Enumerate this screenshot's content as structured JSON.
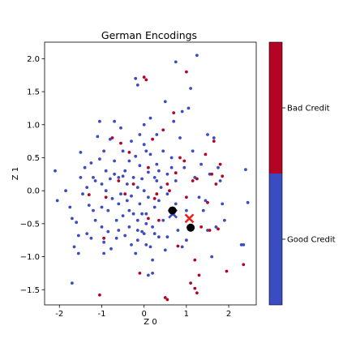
{
  "chart_data": {
    "type": "scatter",
    "title": "German Encodings",
    "xlabel": "Z 0",
    "ylabel": "Z 1",
    "xlim": [
      -2.35,
      2.65
    ],
    "ylim": [
      -1.73,
      2.25
    ],
    "xticks": [
      "-2",
      "-1",
      "0",
      "1",
      "2"
    ],
    "xtick_values": [
      -2,
      -1,
      0,
      1,
      2
    ],
    "yticks": [
      "−1.5",
      "−1.0",
      "−0.5",
      "0.0",
      "0.5",
      "1.0",
      "1.5",
      "2.0"
    ],
    "ytick_values": [
      -1.5,
      -1.0,
      -0.5,
      0.0,
      0.5,
      1.0,
      1.5,
      2.0
    ],
    "grid": false,
    "colors": {
      "good": "#3b4cc0",
      "bad": "#b40426"
    },
    "colorbar": {
      "labels": [
        "Bad Credit",
        "Good Credit"
      ]
    },
    "series": [
      {
        "class": "good",
        "points": [
          [
            -2.1,
            0.3
          ],
          [
            -2.05,
            -0.15
          ],
          [
            -1.85,
            0.0
          ],
          [
            -1.75,
            -0.25
          ],
          [
            -1.7,
            -0.42
          ],
          [
            -1.6,
            -0.48
          ],
          [
            -1.55,
            -0.68
          ],
          [
            -1.65,
            -0.85
          ],
          [
            -1.55,
            -0.95
          ],
          [
            -1.7,
            -1.4
          ],
          [
            -1.5,
            0.58
          ],
          [
            -1.5,
            0.2
          ],
          [
            -1.45,
            -0.05
          ],
          [
            -1.4,
            0.35
          ],
          [
            -1.35,
            0.05
          ],
          [
            -1.3,
            -0.22
          ],
          [
            -1.25,
            0.42
          ],
          [
            -1.2,
            -0.3
          ],
          [
            -1.15,
            0.15
          ],
          [
            -1.15,
            -0.45
          ],
          [
            -1.1,
            0.82
          ],
          [
            -1.05,
            1.05
          ],
          [
            -1.05,
            0.48
          ],
          [
            -1.0,
            0.1
          ],
          [
            -1.0,
            -0.25
          ],
          [
            -1.0,
            -0.55
          ],
          [
            -0.95,
            -0.78
          ],
          [
            -0.95,
            -0.95
          ],
          [
            -0.9,
            0.3
          ],
          [
            -0.9,
            0.0
          ],
          [
            -0.85,
            -0.62
          ],
          [
            -0.85,
            -0.3
          ],
          [
            -0.8,
            0.78
          ],
          [
            -0.8,
            0.18
          ],
          [
            -0.75,
            -0.12
          ],
          [
            -0.7,
            1.05
          ],
          [
            -0.7,
            0.45
          ],
          [
            -0.65,
            -0.45
          ],
          [
            -0.65,
            -0.72
          ],
          [
            -0.6,
            0.2
          ],
          [
            -0.6,
            -0.2
          ],
          [
            -0.55,
            0.95
          ],
          [
            -0.55,
            -0.05
          ],
          [
            -0.5,
            0.6
          ],
          [
            -0.5,
            -0.38
          ],
          [
            -0.45,
            0.3
          ],
          [
            -0.45,
            -0.68
          ],
          [
            -0.4,
            0.1
          ],
          [
            -0.4,
            -0.15
          ],
          [
            -0.35,
            0.45
          ],
          [
            -0.35,
            -0.55
          ],
          [
            -0.3,
            0.75
          ],
          [
            -0.3,
            -0.08
          ],
          [
            -0.25,
            0.2
          ],
          [
            -0.25,
            -0.35
          ],
          [
            -0.2,
            1.7
          ],
          [
            -0.2,
            0.52
          ],
          [
            -0.2,
            -0.95
          ],
          [
            -0.15,
            1.6
          ],
          [
            -0.15,
            0.05
          ],
          [
            -0.15,
            -0.45
          ],
          [
            -0.15,
            -0.75
          ],
          [
            -0.1,
            0.38
          ],
          [
            -0.1,
            -0.2
          ],
          [
            -0.05,
            0.18
          ],
          [
            -0.05,
            -0.62
          ],
          [
            0.0,
            1.0
          ],
          [
            0.0,
            0.7
          ],
          [
            0.0,
            0.0
          ],
          [
            0.05,
            -0.35
          ],
          [
            0.05,
            -0.82
          ],
          [
            0.1,
            0.28
          ],
          [
            0.1,
            -0.1
          ],
          [
            0.15,
            1.1
          ],
          [
            0.15,
            0.55
          ],
          [
            0.2,
            -0.55
          ],
          [
            0.2,
            -1.05
          ],
          [
            0.25,
            0.2
          ],
          [
            0.25,
            -0.25
          ],
          [
            0.3,
            0.85
          ],
          [
            0.3,
            0.4
          ],
          [
            0.35,
            -0.7
          ],
          [
            0.35,
            -0.15
          ],
          [
            0.4,
            0.05
          ],
          [
            0.45,
            0.6
          ],
          [
            0.45,
            -0.45
          ],
          [
            0.5,
            1.35
          ],
          [
            0.5,
            -0.9
          ],
          [
            0.55,
            0.25
          ],
          [
            0.55,
            -0.05
          ],
          [
            0.6,
            -0.3
          ],
          [
            0.65,
            0.5
          ],
          [
            0.7,
            1.05
          ],
          [
            0.75,
            1.95
          ],
          [
            0.75,
            0.15
          ],
          [
            0.8,
            -0.6
          ],
          [
            0.85,
            0.8
          ],
          [
            0.9,
            1.2
          ],
          [
            0.95,
            0.35
          ],
          [
            1.0,
            -0.3
          ],
          [
            1.05,
            1.25
          ],
          [
            1.1,
            1.55
          ],
          [
            1.15,
            0.6
          ],
          [
            1.2,
            0.2
          ],
          [
            1.25,
            2.05
          ],
          [
            1.3,
            -0.1
          ],
          [
            1.35,
            0.4
          ],
          [
            1.4,
            -0.3
          ],
          [
            1.45,
            -0.15
          ],
          [
            1.5,
            0.85
          ],
          [
            1.5,
            -0.6
          ],
          [
            1.55,
            0.25
          ],
          [
            1.6,
            -1.0
          ],
          [
            1.65,
            0.8
          ],
          [
            1.7,
            -0.55
          ],
          [
            1.75,
            0.35
          ],
          [
            1.8,
            0.15
          ],
          [
            1.85,
            -0.2
          ],
          [
            1.9,
            -0.45
          ],
          [
            2.3,
            -0.82
          ],
          [
            2.35,
            -0.82
          ],
          [
            2.4,
            0.32
          ],
          [
            2.45,
            -0.18
          ],
          [
            -1.35,
            -0.65
          ],
          [
            -0.78,
            -0.88
          ],
          [
            -0.3,
            -0.82
          ],
          [
            0.05,
            -0.5
          ],
          [
            0.25,
            -0.65
          ],
          [
            -0.6,
            -0.6
          ],
          [
            -1.25,
            -0.72
          ],
          [
            -0.5,
            0.22
          ],
          [
            -0.95,
            0.6
          ],
          [
            -1.2,
            0.2
          ],
          [
            -0.7,
            0.25
          ],
          [
            0.1,
            -1.28
          ],
          [
            0.2,
            -1.25
          ],
          [
            0.55,
            -0.7
          ],
          [
            0.9,
            -0.85
          ],
          [
            1.0,
            -0.75
          ],
          [
            0.3,
            0.15
          ],
          [
            -0.35,
            -0.3
          ],
          [
            -0.15,
            -0.6
          ],
          [
            0.0,
            -0.65
          ],
          [
            0.15,
            -0.85
          ],
          [
            0.35,
            0.3
          ],
          [
            0.05,
            0.6
          ],
          [
            -0.1,
            0.85
          ],
          [
            -0.05,
            -0.35
          ],
          [
            0.75,
            -0.2
          ],
          [
            0.65,
            0.35
          ]
        ]
      },
      {
        "class": "bad",
        "points": [
          [
            -1.3,
            -0.06
          ],
          [
            -1.05,
            -1.58
          ],
          [
            -0.95,
            -0.72
          ],
          [
            -0.9,
            -0.1
          ],
          [
            -0.75,
            0.8
          ],
          [
            -0.55,
            0.72
          ],
          [
            -0.35,
            0.58
          ],
          [
            -0.25,
            0.1
          ],
          [
            -0.1,
            -1.25
          ],
          [
            0.0,
            1.72
          ],
          [
            0.05,
            1.68
          ],
          [
            0.1,
            -0.42
          ],
          [
            0.2,
            0.78
          ],
          [
            0.3,
            -0.05
          ],
          [
            0.35,
            -0.45
          ],
          [
            0.45,
            0.92
          ],
          [
            0.5,
            -1.62
          ],
          [
            0.55,
            -1.65
          ],
          [
            0.6,
            0.0
          ],
          [
            0.7,
            1.18
          ],
          [
            0.75,
            0.27
          ],
          [
            0.8,
            -0.84
          ],
          [
            0.95,
            0.45
          ],
          [
            1.0,
            1.8
          ],
          [
            1.0,
            -0.1
          ],
          [
            1.1,
            -1.4
          ],
          [
            1.15,
            0.15
          ],
          [
            1.2,
            -1.48
          ],
          [
            1.2,
            -1.05
          ],
          [
            1.25,
            0.18
          ],
          [
            1.25,
            -1.55
          ],
          [
            1.3,
            -1.28
          ],
          [
            1.35,
            -0.55
          ],
          [
            1.45,
            0.55
          ],
          [
            1.5,
            -0.18
          ],
          [
            1.55,
            -0.6
          ],
          [
            1.6,
            0.25
          ],
          [
            1.65,
            0.75
          ],
          [
            1.7,
            0.1
          ],
          [
            1.75,
            -0.58
          ],
          [
            1.8,
            0.4
          ],
          [
            1.85,
            0.22
          ],
          [
            1.95,
            -1.22
          ],
          [
            2.35,
            -1.12
          ],
          [
            -0.45,
            -0.05
          ],
          [
            0.25,
            -0.12
          ],
          [
            0.55,
            0.1
          ],
          [
            0.85,
            0.5
          ],
          [
            -0.6,
            0.15
          ],
          [
            0.1,
            0.35
          ]
        ]
      }
    ],
    "markers": [
      {
        "kind": "good-centroid",
        "shape": "x",
        "x": 0.68,
        "y": -0.35,
        "color": "#3b4cc0"
      },
      {
        "kind": "bad-centroid",
        "shape": "x",
        "x": 1.07,
        "y": -0.42,
        "color": "#e8231c"
      },
      {
        "kind": "centroid-a",
        "shape": "dot",
        "x": 0.67,
        "y": -0.3,
        "color": "#000000"
      },
      {
        "kind": "centroid-b",
        "shape": "dot",
        "x": 1.1,
        "y": -0.56,
        "color": "#000000"
      }
    ]
  }
}
